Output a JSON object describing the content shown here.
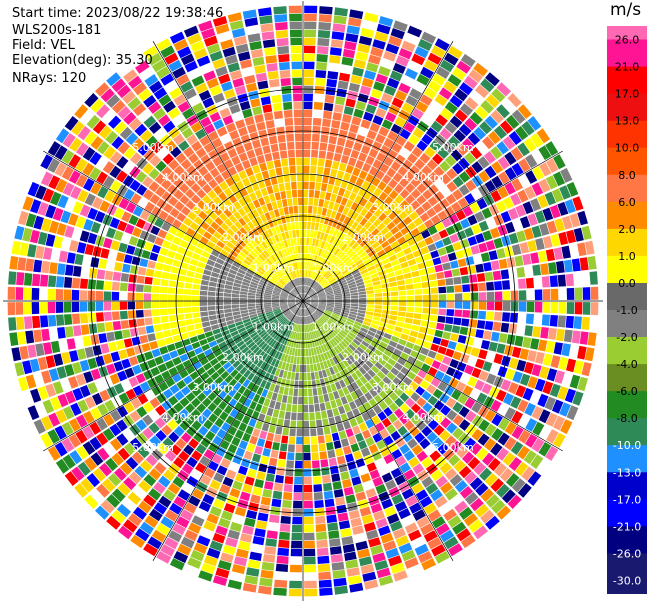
{
  "info": {
    "start_time": "Start time: 2023/08/22 19:38:46",
    "instrument": "WLS200s-181",
    "field": "Field: VEL",
    "elevation": "Elevation(deg): 35.30",
    "nrays": "NRays: 120"
  },
  "colorbar": {
    "unit": "m/s",
    "ticks": [
      "26.0",
      "21.0",
      "17.0",
      "13.0",
      "10.0",
      "8.0",
      "6.0",
      "2.0",
      "1.0",
      "0.0",
      "-1.0",
      "-2.0",
      "-4.0",
      "-6.0",
      "-8.0",
      "-10.0",
      "-13.0",
      "-17.0",
      "-21.0",
      "-26.0",
      "-30.0"
    ],
    "colors": [
      "#ff69b4",
      "#ff1493",
      "#ff0000",
      "#ee1010",
      "#ff3300",
      "#ff5500",
      "#ff7744",
      "#ff8c00",
      "#ffd700",
      "#ffff00",
      "#696969",
      "#808080",
      "#9acd32",
      "#6b8e23",
      "#228b22",
      "#2e8b57",
      "#1e90ff",
      "#0000cd",
      "#0000ff",
      "#000080",
      "#191970"
    ]
  },
  "range_labels": [
    "1.00km",
    "2.00km",
    "3.00km",
    "4.00km",
    "5.00km"
  ],
  "chart_data": {
    "type": "heatmap",
    "field": "VEL",
    "unit": "m/s",
    "nrays": 120,
    "range_rings_km": [
      1,
      2,
      3,
      4,
      5
    ],
    "colorbar_range": [
      -30,
      26
    ]
  }
}
